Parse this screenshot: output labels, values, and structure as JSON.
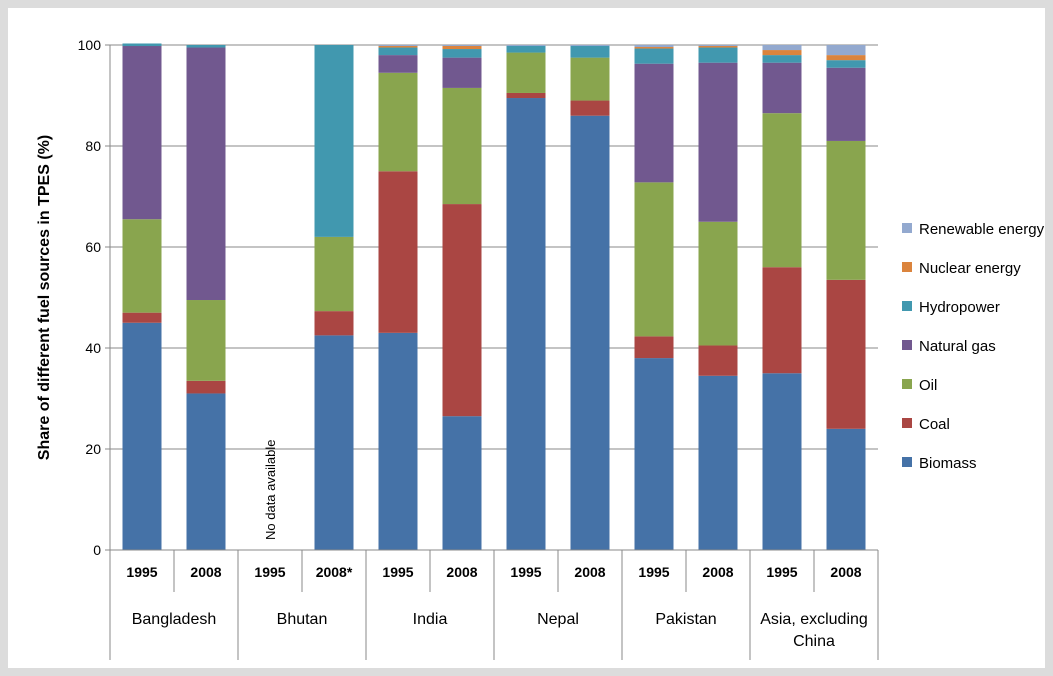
{
  "chart_data": {
    "type": "bar",
    "stacked": true,
    "ylabel": "Share of different fuel sources in TPES (%)",
    "ylim": [
      0,
      100
    ],
    "yticks": [
      0,
      20,
      40,
      60,
      80,
      100
    ],
    "grid": true,
    "legend_position": "right",
    "groups": [
      {
        "label": "Bangladesh",
        "categories": [
          "1995",
          "2008"
        ]
      },
      {
        "label": "Bhutan",
        "categories": [
          "1995",
          "2008*"
        ]
      },
      {
        "label": "India",
        "categories": [
          "1995",
          "2008"
        ]
      },
      {
        "label": "Nepal",
        "categories": [
          "1995",
          "2008"
        ]
      },
      {
        "label": "Pakistan",
        "categories": [
          "1995",
          "2008"
        ]
      },
      {
        "label": "Asia, excluding China",
        "categories": [
          "1995",
          "2008"
        ]
      }
    ],
    "annotations": [
      {
        "text": "No data available",
        "group": "Bhutan",
        "category": "1995"
      }
    ],
    "series": [
      {
        "name": "Biomass",
        "color": "#4572A7",
        "values": [
          45,
          31,
          null,
          42.5,
          43,
          26.5,
          89.5,
          86,
          38,
          34.5,
          35,
          24
        ]
      },
      {
        "name": "Coal",
        "color": "#AA4643",
        "values": [
          2,
          2.5,
          null,
          4.8,
          32,
          42,
          1,
          3,
          4.3,
          6,
          21,
          29.5
        ]
      },
      {
        "name": "Oil",
        "color": "#89A54E",
        "values": [
          18.5,
          16,
          null,
          14.7,
          19.5,
          23,
          8,
          8.5,
          30.5,
          24.5,
          30.5,
          27.5
        ]
      },
      {
        "name": "Natural gas",
        "color": "#71588F",
        "values": [
          34.3,
          50,
          null,
          0,
          3.5,
          6,
          0,
          0,
          23.5,
          31.5,
          10,
          14.5
        ]
      },
      {
        "name": "Hydropower",
        "color": "#4198AF",
        "values": [
          0.5,
          0.5,
          null,
          38,
          1.5,
          1.7,
          1.3,
          2.3,
          3,
          3,
          1.5,
          1.5
        ]
      },
      {
        "name": "Nuclear energy",
        "color": "#DB843D",
        "values": [
          0,
          0,
          null,
          0,
          0.3,
          0.6,
          0,
          0,
          0.3,
          0.3,
          1,
          1
        ]
      },
      {
        "name": "Renewable energy",
        "color": "#93A9CF",
        "values": [
          0,
          0,
          null,
          0,
          0.2,
          0.2,
          0.2,
          0.2,
          0.4,
          0.2,
          1,
          2
        ]
      }
    ]
  }
}
